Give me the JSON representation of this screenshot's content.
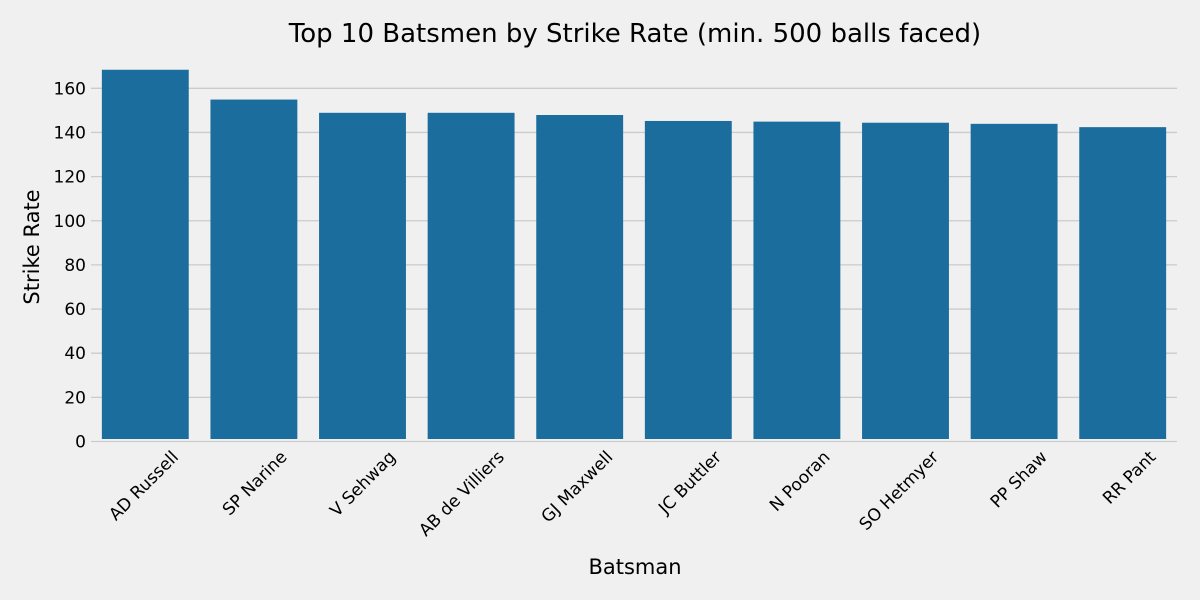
{
  "chart_data": {
    "type": "bar",
    "title": "Top 10 Batsmen by Strike Rate (min. 500 balls faced)",
    "xlabel": "Batsman",
    "ylabel": "Strike Rate",
    "categories": [
      "AD Russell",
      "SP Narine",
      "V Sehwag",
      "AB de Villiers",
      "GJ Maxwell",
      "JC Buttler",
      "N Pooran",
      "SO Hetmyer",
      "PP Shaw",
      "RR Pant"
    ],
    "values": [
      168.4,
      154.9,
      148.9,
      148.9,
      147.9,
      145.2,
      144.9,
      144.4,
      143.9,
      142.4
    ],
    "ylim": [
      0,
      170
    ],
    "yticks": [
      0,
      20,
      40,
      60,
      80,
      100,
      120,
      140,
      160
    ],
    "grid": "y",
    "bar_color": "#1a6d9c",
    "background_color": "#f0f0f0"
  }
}
